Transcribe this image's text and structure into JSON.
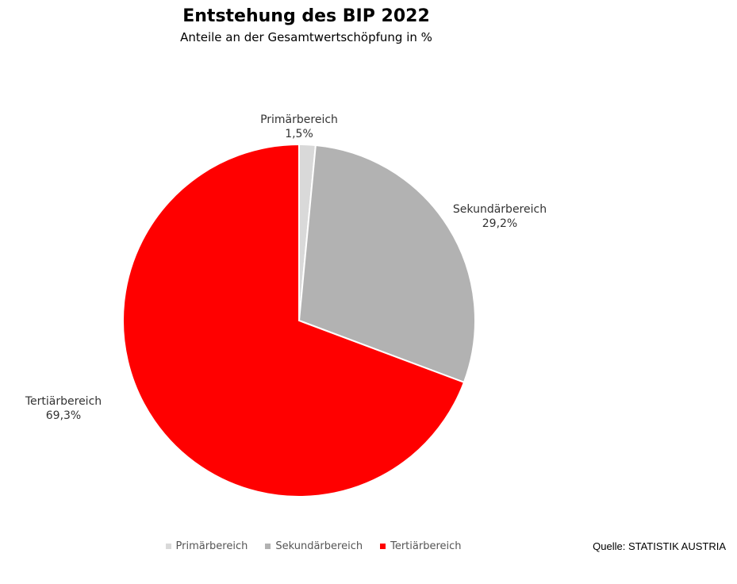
{
  "chart_data": {
    "type": "pie",
    "title": "Entstehung des BIP 2022",
    "subtitle": "Anteile an der Gesamtwertschöpfung in %",
    "series": [
      {
        "name": "Primärbereich",
        "value": 1.5,
        "label": "1,5%",
        "color": "#d9d9d9"
      },
      {
        "name": "Sekundärbereich",
        "value": 29.2,
        "label": "29,2%",
        "color": "#b2b2b2"
      },
      {
        "name": "Tertiärbereich",
        "value": 69.3,
        "label": "69,3%",
        "color": "#ff0000"
      }
    ],
    "legend_position": "bottom",
    "source": "Quelle: STATISTIK AUSTRIA"
  }
}
